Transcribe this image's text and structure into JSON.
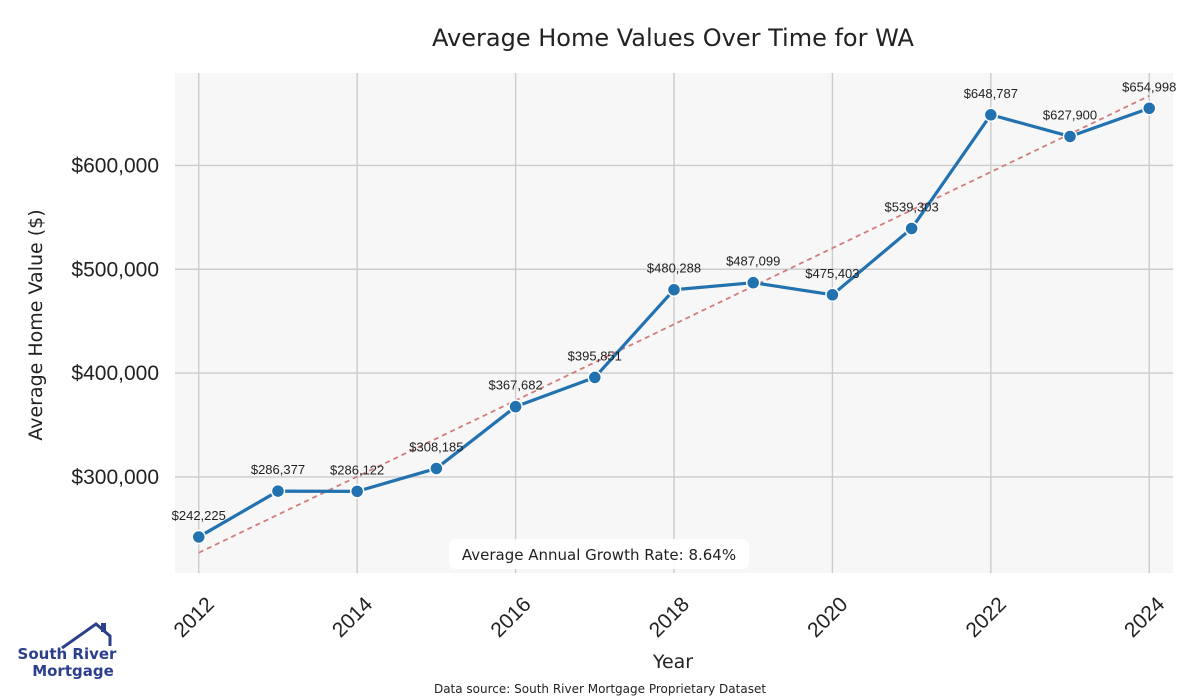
{
  "chart_data": {
    "type": "line",
    "title": "Average Home Values Over Time for WA",
    "xlabel": "Year",
    "ylabel": "Average Home Value ($)",
    "x": [
      2012,
      2013,
      2014,
      2015,
      2016,
      2017,
      2018,
      2019,
      2020,
      2021,
      2022,
      2023,
      2024
    ],
    "series": [
      {
        "values": [
          242225,
          286377,
          286122,
          308185,
          367682,
          395851,
          480288,
          487099,
          475403,
          539303,
          648787,
          627900,
          654998
        ],
        "labels": [
          "$242,225",
          "$286,377",
          "$286,122",
          "$308,185",
          "$367,682",
          "$395,851",
          "$480,288",
          "$487,099",
          "$475,403",
          "$539,303",
          "$648,787",
          "$627,900",
          "$654,998"
        ],
        "color": "#2372b0"
      }
    ],
    "trendline": {
      "start": [
        2012,
        227000
      ],
      "end": [
        2024,
        667000
      ],
      "color": "#d27b7b",
      "style": "dashed"
    },
    "xticks": [
      2012,
      2014,
      2016,
      2018,
      2020,
      2022,
      2024
    ],
    "xtick_labels": [
      "2012",
      "2014",
      "2016",
      "2018",
      "2020",
      "2022",
      "2024"
    ],
    "yticks": [
      300000,
      400000,
      500000,
      600000
    ],
    "ytick_labels": [
      "$300,000",
      "$400,000",
      "$500,000",
      "$600,000"
    ],
    "xlim": [
      2011.7,
      2024.3
    ],
    "ylim": [
      207500,
      689000
    ],
    "grid": true,
    "annotation": "Average Annual Growth Rate: 8.64%",
    "source": "Data source: South River Mortgage Proprietary Dataset",
    "logo": {
      "line1": "South River",
      "line2": "Mortgage",
      "color": "#2b3f8c"
    }
  }
}
